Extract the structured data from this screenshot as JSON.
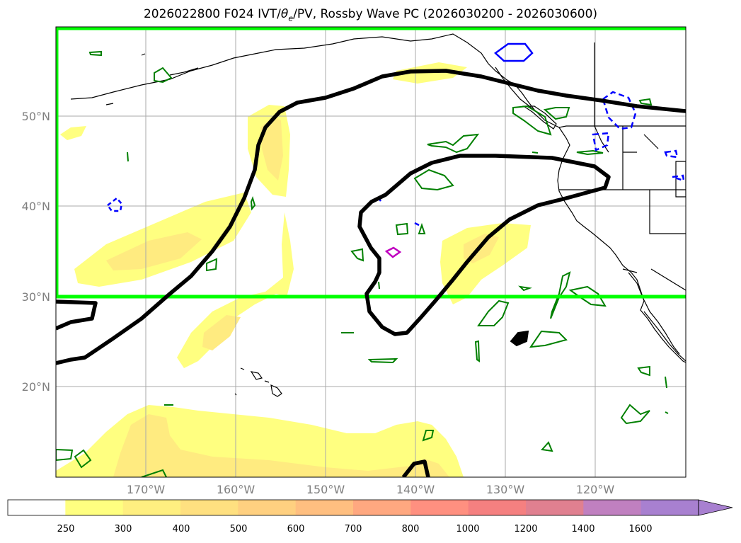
{
  "title": {
    "prefix": "2026022800 F024 IVT/",
    "theta": "θ",
    "sub": "e",
    "suffix": "/PV, Rossby Wave PC (2026030200 - 2026030600)"
  },
  "map": {
    "lon_labels": [
      "170°W",
      "160°W",
      "150°W",
      "140°W",
      "130°W",
      "120°W"
    ],
    "lat_labels": [
      "50°N",
      "40°N",
      "30°N",
      "20°N"
    ]
  },
  "colorbar": {
    "levels": [
      "250",
      "300",
      "400",
      "500",
      "600",
      "700",
      "800",
      "1000",
      "1200",
      "1400",
      "1600"
    ],
    "colors": [
      "#ffffff",
      "#ffff80",
      "#ffef80",
      "#ffe080",
      "#ffd080",
      "#ffbf80",
      "#ffa880",
      "#ff9080",
      "#f58080",
      "#e08090",
      "#c080c0",
      "#a880d0"
    ],
    "extend_color": "#a880d0"
  },
  "colors": {
    "ivt_light": "#ffff80",
    "ivt_mid": "#ffeb80",
    "rossby_box": "#00ff00",
    "rossby_contour": "#000000",
    "theta_e": "#008000",
    "pv_neg": "#0000ff",
    "pv_pos": "#c000c0",
    "coast": "#000000"
  }
}
